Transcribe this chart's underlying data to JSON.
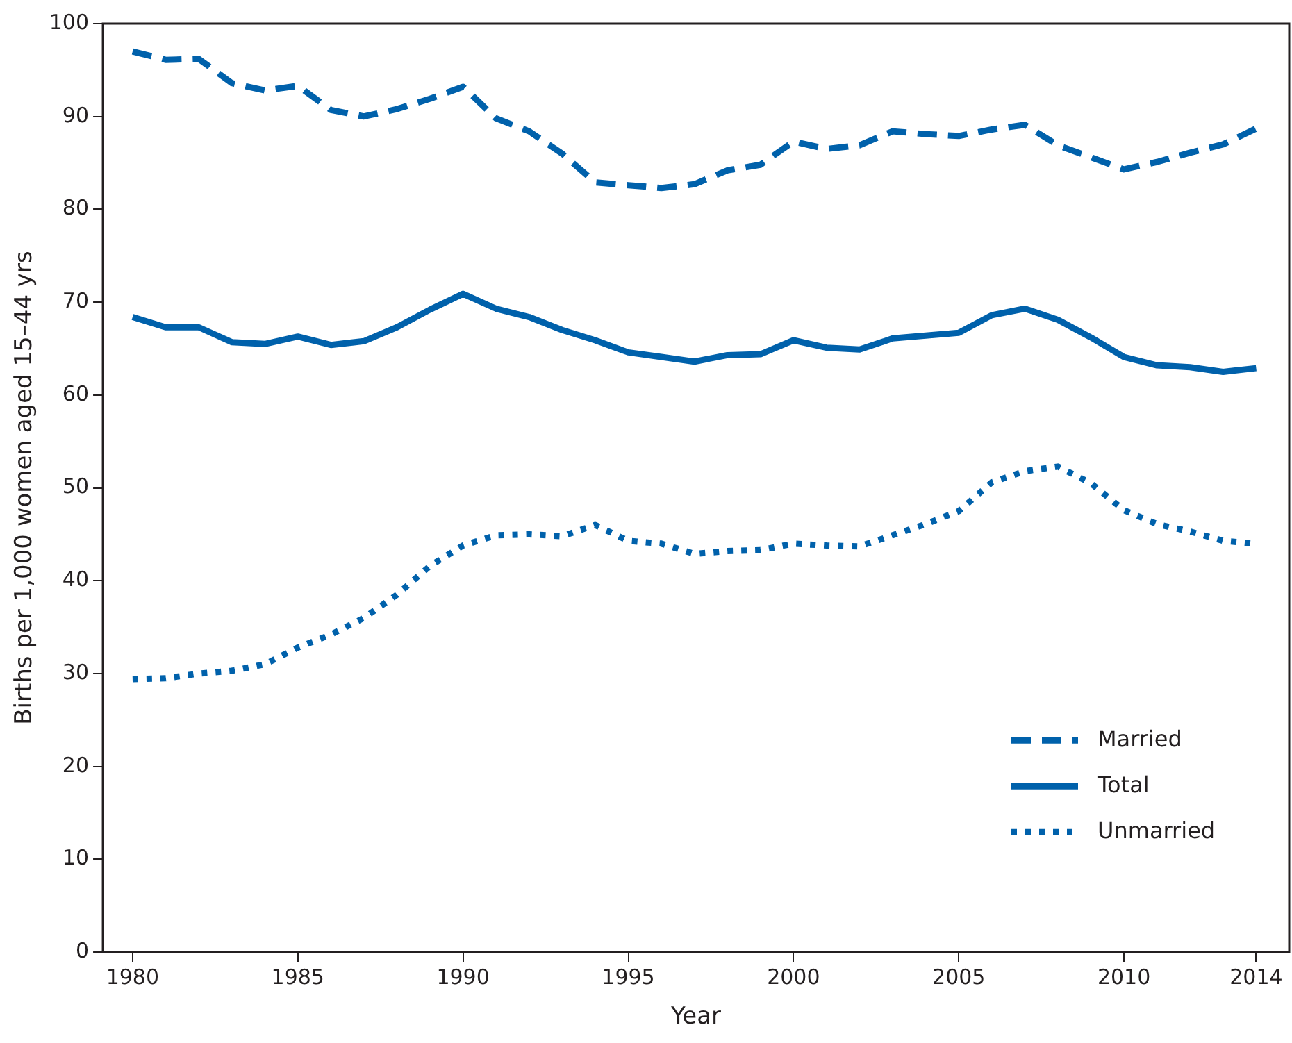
{
  "chart_data": {
    "type": "line",
    "xlabel": "Year",
    "ylabel": "Births per 1,000 women aged 15–44 yrs",
    "x": [
      1980,
      1981,
      1982,
      1983,
      1984,
      1985,
      1986,
      1987,
      1988,
      1989,
      1990,
      1991,
      1992,
      1993,
      1994,
      1995,
      1996,
      1997,
      1998,
      1999,
      2000,
      2001,
      2002,
      2003,
      2004,
      2005,
      2006,
      2007,
      2008,
      2009,
      2010,
      2011,
      2012,
      2013,
      2014
    ],
    "series": [
      {
        "name": "Married",
        "color": "#0061ab",
        "line_style": "dashed",
        "values": [
          97.0,
          96.1,
          96.2,
          93.6,
          92.8,
          93.3,
          90.7,
          90.0,
          90.8,
          91.9,
          93.2,
          89.8,
          88.4,
          86.0,
          82.9,
          82.6,
          82.3,
          82.7,
          84.2,
          84.8,
          87.3,
          86.5,
          86.9,
          88.4,
          88.1,
          87.9,
          88.6,
          89.1,
          86.9,
          85.6,
          84.3,
          85.1,
          86.1,
          87.0,
          88.7
        ]
      },
      {
        "name": "Total",
        "color": "#0061ab",
        "line_style": "solid",
        "values": [
          68.4,
          67.3,
          67.3,
          65.7,
          65.5,
          66.3,
          65.4,
          65.8,
          67.3,
          69.2,
          70.9,
          69.3,
          68.4,
          67.0,
          65.9,
          64.6,
          64.1,
          63.6,
          64.3,
          64.4,
          65.9,
          65.1,
          64.9,
          66.1,
          66.4,
          66.7,
          68.6,
          69.3,
          68.1,
          66.2,
          64.1,
          63.2,
          63.0,
          62.5,
          62.9
        ]
      },
      {
        "name": "Unmarried",
        "color": "#0061ab",
        "line_style": "dotted",
        "values": [
          29.4,
          29.5,
          30.0,
          30.3,
          31.0,
          32.8,
          34.2,
          36.0,
          38.5,
          41.6,
          43.8,
          44.9,
          45.0,
          44.8,
          46.0,
          44.3,
          44.0,
          42.9,
          43.2,
          43.3,
          44.0,
          43.8,
          43.7,
          44.9,
          46.1,
          47.5,
          50.6,
          51.8,
          52.3,
          50.5,
          47.6,
          46.1,
          45.3,
          44.3,
          44.0
        ]
      }
    ],
    "xlim": [
      1979.1,
      2015
    ],
    "xticks": [
      1980,
      1985,
      1990,
      1995,
      2000,
      2005,
      2010,
      2014
    ],
    "ylim": [
      0,
      100
    ],
    "yticks": [
      0,
      10,
      20,
      30,
      40,
      50,
      60,
      70,
      80,
      90,
      100
    ],
    "grid": false,
    "legend": "bottom right",
    "marker": "none"
  }
}
